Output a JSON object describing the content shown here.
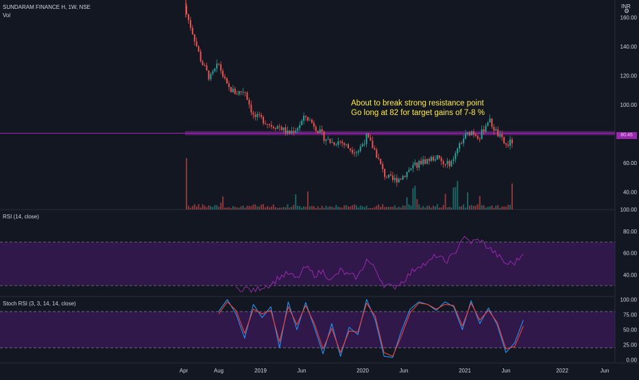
{
  "header": {
    "symbol": "SUNDARAM FINANCE H, 1W, NSE",
    "vol_label": "Vol",
    "currency": "INR"
  },
  "annotation": {
    "line1": "About to break strong resistance point",
    "line2": "Go long at 82 for target gains of 7-8 %"
  },
  "price_tag": "80.45",
  "colors": {
    "background": "#131722",
    "up": "#26a69a",
    "down": "#ef5350",
    "rsi_line": "#9c27b0",
    "band_fill": "#4a1a6b",
    "stoch_k": "#2196f3",
    "stoch_d": "#f44336",
    "annotation": "#ffeb3b",
    "resistance": "#9c27b0"
  },
  "chart_data": [
    {
      "type": "candlestick",
      "title": "SUNDARAM FINANCE H, 1W, NSE",
      "x_ticks": [
        "Apr",
        "Aug",
        "2019",
        "Jun",
        "2020",
        "Jun",
        "2021",
        "Jun",
        "2022",
        "Jun"
      ],
      "y_ticks": [
        "160.00",
        "140.00",
        "120.00",
        "100.00",
        "60.00",
        "40.00"
      ],
      "ylim": [
        28,
        172
      ],
      "resistance_level": 80.45,
      "volume_label": "Vol",
      "close_path": [
        [
          "2018-04",
          168
        ],
        [
          "2018-05",
          150
        ],
        [
          "2018-06",
          130
        ],
        [
          "2018-07",
          118
        ],
        [
          "2018-08",
          128
        ],
        [
          "2018-09",
          112
        ],
        [
          "2018-10",
          108
        ],
        [
          "2018-11",
          110
        ],
        [
          "2018-12",
          92
        ],
        [
          "2019-01",
          90
        ],
        [
          "2019-02",
          86
        ],
        [
          "2019-03",
          85
        ],
        [
          "2019-04",
          80
        ],
        [
          "2019-05",
          84
        ],
        [
          "2019-06",
          92
        ],
        [
          "2019-07",
          86
        ],
        [
          "2019-08",
          78
        ],
        [
          "2019-09",
          74
        ],
        [
          "2019-10",
          75
        ],
        [
          "2019-11",
          70
        ],
        [
          "2019-12",
          68
        ],
        [
          "2020-01",
          78
        ],
        [
          "2020-02",
          68
        ],
        [
          "2020-03",
          52
        ],
        [
          "2020-04",
          48
        ],
        [
          "2020-05",
          50
        ],
        [
          "2020-06",
          56
        ],
        [
          "2020-07",
          60
        ],
        [
          "2020-08",
          62
        ],
        [
          "2020-09",
          64
        ],
        [
          "2020-10",
          58
        ],
        [
          "2020-11",
          62
        ],
        [
          "2020-12",
          76
        ],
        [
          "2021-01",
          82
        ],
        [
          "2021-02",
          78
        ],
        [
          "2021-03",
          90
        ],
        [
          "2021-04",
          80
        ],
        [
          "2021-05",
          72
        ],
        [
          "2021-06",
          76
        ],
        [
          "2021-07",
          80.45
        ]
      ]
    },
    {
      "type": "line",
      "title": "RSI (14, close)",
      "y_ticks": [
        "100.00",
        "80.00",
        "60.00",
        "40.00"
      ],
      "ylim": [
        20,
        100
      ],
      "bands": [
        70,
        30
      ],
      "series": [
        {
          "x": [
            "2018-10",
            "2018-11",
            "2018-12",
            "2019-01",
            "2019-02",
            "2019-03",
            "2019-04",
            "2019-05",
            "2019-06",
            "2019-07",
            "2019-08",
            "2019-09",
            "2019-10",
            "2019-11",
            "2019-12",
            "2020-01",
            "2020-02",
            "2020-03",
            "2020-04",
            "2020-05",
            "2020-06",
            "2020-07",
            "2020-08",
            "2020-09",
            "2020-10",
            "2020-11",
            "2020-12",
            "2021-01",
            "2021-02",
            "2021-03",
            "2021-04",
            "2021-05",
            "2021-06",
            "2021-07"
          ],
          "values": [
            26,
            28,
            25,
            29,
            31,
            38,
            41,
            36,
            47,
            40,
            43,
            35,
            44,
            39,
            38,
            54,
            45,
            31,
            28,
            33,
            41,
            49,
            50,
            58,
            52,
            58,
            74,
            70,
            72,
            65,
            58,
            50,
            51,
            59
          ]
        }
      ]
    },
    {
      "type": "line",
      "title": "Stoch RSI (3, 3, 14, 14, close)",
      "y_ticks": [
        "100.00",
        "75.00",
        "50.00",
        "25.00",
        "0.00"
      ],
      "ylim": [
        -5,
        105
      ],
      "bands": [
        80,
        20
      ],
      "series": [
        {
          "x": [
            "2018-08",
            "2018-09",
            "2018-10",
            "2018-11",
            "2018-12",
            "2019-01",
            "2019-02",
            "2019-03",
            "2019-04",
            "2019-05",
            "2019-06",
            "2019-07",
            "2019-08",
            "2019-09",
            "2019-10",
            "2019-11",
            "2019-12",
            "2020-01",
            "2020-02",
            "2020-03",
            "2020-04",
            "2020-05",
            "2020-06",
            "2020-07",
            "2020-08",
            "2020-09",
            "2020-10",
            "2020-11",
            "2020-12",
            "2021-01",
            "2021-02",
            "2021-03",
            "2021-04",
            "2021-05",
            "2021-06",
            "2021-07"
          ],
          "values": [
            80,
            100,
            76,
            36,
            92,
            70,
            88,
            20,
            96,
            50,
            95,
            54,
            10,
            60,
            6,
            54,
            42,
            100,
            66,
            6,
            4,
            48,
            84,
            96,
            92,
            82,
            96,
            88,
            50,
            98,
            60,
            86,
            58,
            12,
            28,
            66
          ]
        },
        {
          "x": [
            "2018-08",
            "2018-09",
            "2018-10",
            "2018-11",
            "2018-12",
            "2019-01",
            "2019-02",
            "2019-03",
            "2019-04",
            "2019-05",
            "2019-06",
            "2019-07",
            "2019-08",
            "2019-09",
            "2019-10",
            "2019-11",
            "2019-12",
            "2020-01",
            "2020-02",
            "2020-03",
            "2020-04",
            "2020-05",
            "2020-06",
            "2020-07",
            "2020-08",
            "2020-09",
            "2020-10",
            "2020-11",
            "2020-12",
            "2021-01",
            "2021-02",
            "2021-03",
            "2021-04",
            "2021-05",
            "2021-06",
            "2021-07"
          ],
          "values": [
            76,
            96,
            82,
            44,
            84,
            76,
            82,
            30,
            88,
            58,
            90,
            60,
            18,
            52,
            12,
            48,
            46,
            94,
            72,
            12,
            6,
            40,
            78,
            94,
            92,
            84,
            92,
            90,
            56,
            94,
            66,
            82,
            62,
            18,
            22,
            56
          ]
        }
      ]
    }
  ]
}
